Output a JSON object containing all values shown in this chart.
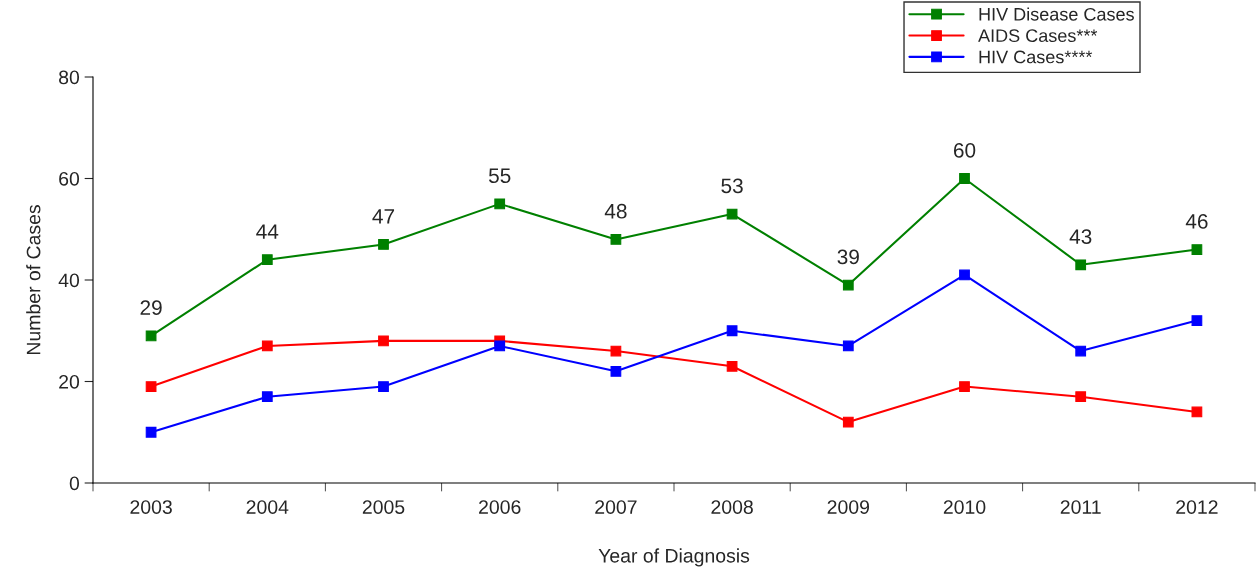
{
  "chart_data": {
    "type": "line",
    "xlabel": "Year of Diagnosis",
    "ylabel": "Number of Cases",
    "categories": [
      "2003",
      "2004",
      "2005",
      "2006",
      "2007",
      "2008",
      "2009",
      "2010",
      "2011",
      "2012"
    ],
    "series": [
      {
        "name": "HIV Disease Cases",
        "color": "#008000",
        "values": [
          29,
          44,
          47,
          55,
          48,
          53,
          39,
          60,
          43,
          46
        ],
        "value_labels": [
          "29",
          "44",
          "47",
          "55",
          "48",
          "53",
          "39",
          "60",
          "43",
          "46"
        ]
      },
      {
        "name": "AIDS Cases***",
        "color": "#ff0000",
        "values": [
          19,
          27,
          28,
          28,
          26,
          23,
          12,
          19,
          17,
          14
        ]
      },
      {
        "name": "HIV Cases****",
        "color": "#0000ff",
        "values": [
          10,
          17,
          19,
          27,
          22,
          30,
          27,
          41,
          26,
          32
        ]
      }
    ],
    "ylim": [
      0,
      80
    ],
    "yticks": [
      0,
      20,
      40,
      60,
      80
    ],
    "grid": false,
    "legend": "top right",
    "marker": "square",
    "line_style": "solid"
  }
}
